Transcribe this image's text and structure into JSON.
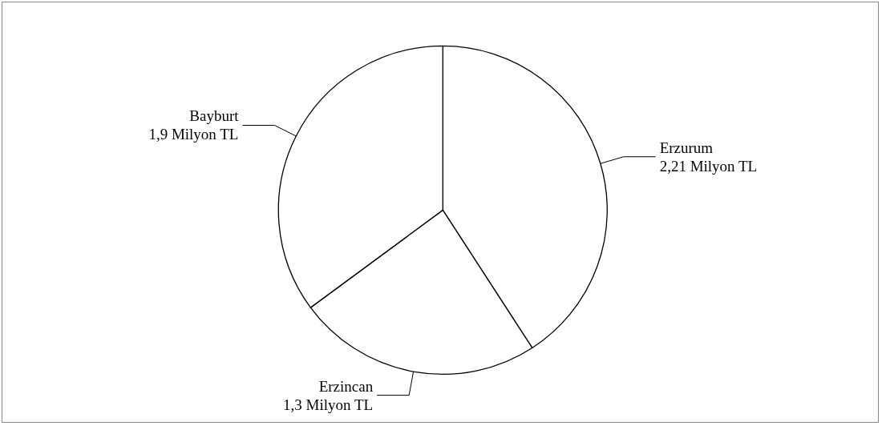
{
  "chart_data": {
    "type": "pie",
    "categories": [
      "Erzurum",
      "Erzincan",
      "Bayburt"
    ],
    "values": [
      2.21,
      1.3,
      1.9
    ],
    "value_labels": [
      "2,21 Milyon TL",
      "1,3 Milyon TL",
      "1,9 Milyon TL"
    ],
    "colors": [
      "#ffffff",
      "#ffffff",
      "#ffffff"
    ],
    "legend": false
  }
}
